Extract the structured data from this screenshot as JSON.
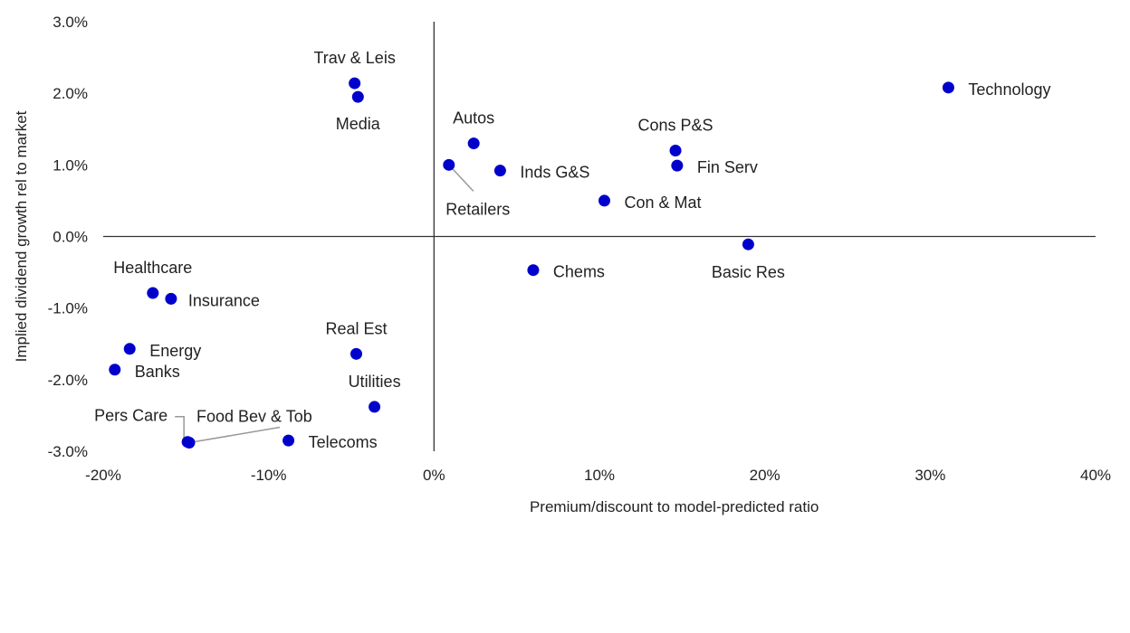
{
  "chart_data": {
    "type": "scatter",
    "xlabel": "Premium/discount to model-predicted ratio",
    "ylabel": "Implied dividend growth rel to market",
    "xlim": [
      -0.2,
      0.4
    ],
    "ylim": [
      -0.03,
      0.03
    ],
    "x_ticks": [
      {
        "value": -0.2,
        "label": "-20%"
      },
      {
        "value": -0.1,
        "label": "-10%"
      },
      {
        "value": 0.0,
        "label": "0%"
      },
      {
        "value": 0.1,
        "label": "10%"
      },
      {
        "value": 0.2,
        "label": "20%"
      },
      {
        "value": 0.3,
        "label": "30%"
      },
      {
        "value": 0.4,
        "label": "40%"
      }
    ],
    "y_ticks": [
      {
        "value": 0.03,
        "label": "3.0%"
      },
      {
        "value": 0.02,
        "label": "2.0%"
      },
      {
        "value": 0.01,
        "label": "1.0%"
      },
      {
        "value": 0.0,
        "label": "0.0%"
      },
      {
        "value": -0.01,
        "label": "-1.0%"
      },
      {
        "value": -0.02,
        "label": "-2.0%"
      },
      {
        "value": -0.03,
        "label": "-3.0%"
      }
    ],
    "grid": false,
    "legend": "none",
    "marker_color": "#0000CC",
    "points": [
      {
        "label": "Technology",
        "x": 0.311,
        "y": 0.0208
      },
      {
        "label": "Trav & Leis",
        "x": -0.048,
        "y": 0.0214
      },
      {
        "label": "Media",
        "x": -0.046,
        "y": 0.0195
      },
      {
        "label": "Autos",
        "x": 0.024,
        "y": 0.013
      },
      {
        "label": "Cons P&S",
        "x": 0.146,
        "y": 0.012
      },
      {
        "label": "Retailers",
        "x": 0.009,
        "y": 0.01
      },
      {
        "label": "Inds G&S",
        "x": 0.04,
        "y": 0.0092
      },
      {
        "label": "Fin Serv",
        "x": 0.147,
        "y": 0.0099
      },
      {
        "label": "Con & Mat",
        "x": 0.103,
        "y": 0.005
      },
      {
        "label": "Basic Res",
        "x": 0.19,
        "y": -0.0011
      },
      {
        "label": "Chems",
        "x": 0.06,
        "y": -0.0047
      },
      {
        "label": "Healthcare",
        "x": -0.17,
        "y": -0.0079
      },
      {
        "label": "Insurance",
        "x": -0.159,
        "y": -0.0087
      },
      {
        "label": "Energy",
        "x": -0.184,
        "y": -0.0157
      },
      {
        "label": "Banks",
        "x": -0.193,
        "y": -0.0186
      },
      {
        "label": "Real Est",
        "x": -0.047,
        "y": -0.0164
      },
      {
        "label": "Utilities",
        "x": -0.036,
        "y": -0.0238
      },
      {
        "label": "Telecoms",
        "x": -0.088,
        "y": -0.0285
      },
      {
        "label": "Pers Care",
        "x": -0.149,
        "y": -0.0287
      },
      {
        "label": "Food Bev & Tob",
        "x": -0.148,
        "y": -0.0288
      }
    ]
  }
}
